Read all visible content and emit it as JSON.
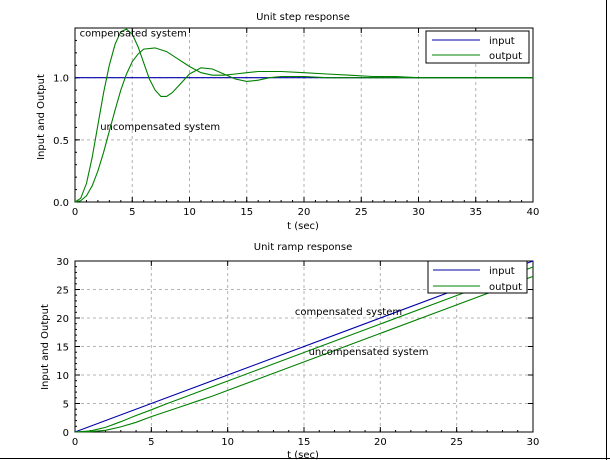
{
  "chart_data": [
    {
      "type": "line",
      "title": "Unit step response",
      "xlabel": "t (sec)",
      "ylabel": "Input and Output",
      "xlim": [
        0,
        40
      ],
      "ylim": [
        0,
        1.4
      ],
      "xticks": [
        0,
        5,
        10,
        15,
        20,
        25,
        30,
        35,
        40
      ],
      "xtick_labels": [
        "0",
        "5",
        "10",
        "15",
        "20",
        "25",
        "30",
        "35",
        "40"
      ],
      "yticks": [
        0,
        0.5,
        1.0
      ],
      "ytick_labels": [
        "0.0",
        "0.5",
        "1.0"
      ],
      "grid": true,
      "legend_position": "top-right",
      "legend": [
        {
          "label": "input",
          "color": "#0000aa"
        },
        {
          "label": "output",
          "color": "#008000"
        }
      ],
      "annotations": [
        {
          "text": "compensated system",
          "x": 0.4,
          "y": 1.33
        },
        {
          "text": "uncompensated system",
          "x": 2.2,
          "y": 0.58
        }
      ],
      "series": [
        {
          "color": "#0000aa",
          "x": [
            0,
            40
          ],
          "y": [
            1.0,
            1.0
          ]
        },
        {
          "color": "#008000",
          "x": [
            0,
            0.5,
            1,
            1.5,
            2,
            2.5,
            3,
            3.5,
            4,
            4.5,
            5,
            5.5,
            6,
            6.5,
            7,
            7.5,
            8,
            8.5,
            9,
            10,
            11,
            12,
            13,
            14,
            15,
            16,
            17,
            18,
            20,
            22,
            25,
            28,
            30,
            35,
            40
          ],
          "y": [
            0,
            0.03,
            0.15,
            0.36,
            0.62,
            0.88,
            1.1,
            1.27,
            1.37,
            1.39,
            1.35,
            1.25,
            1.12,
            0.99,
            0.9,
            0.85,
            0.85,
            0.88,
            0.93,
            1.03,
            1.08,
            1.07,
            1.03,
            0.99,
            0.97,
            0.98,
            1.0,
            1.01,
            1.01,
            1.0,
            1.0,
            1.0,
            1.0,
            1.0,
            1.0
          ]
        },
        {
          "color": "#008000",
          "x": [
            0,
            0.5,
            1,
            1.5,
            2,
            2.5,
            3,
            3.5,
            4,
            4.5,
            5,
            5.5,
            6,
            7,
            8,
            9,
            10,
            11,
            12,
            13,
            14,
            15,
            16,
            17,
            18,
            20,
            22,
            24,
            26,
            28,
            30,
            35,
            40
          ],
          "y": [
            0,
            0.01,
            0.05,
            0.13,
            0.25,
            0.4,
            0.57,
            0.74,
            0.9,
            1.03,
            1.13,
            1.19,
            1.23,
            1.24,
            1.21,
            1.15,
            1.09,
            1.04,
            1.02,
            1.02,
            1.03,
            1.04,
            1.05,
            1.05,
            1.05,
            1.04,
            1.03,
            1.02,
            1.01,
            1.01,
            1.0,
            1.0,
            1.0
          ]
        }
      ]
    },
    {
      "type": "line",
      "title": "Unit ramp response",
      "xlabel": "t (sec)",
      "ylabel": "Input and Output",
      "xlim": [
        0,
        30
      ],
      "ylim": [
        0,
        30
      ],
      "xticks": [
        0,
        5,
        10,
        15,
        20,
        25,
        30
      ],
      "xtick_labels": [
        "0",
        "5",
        "10",
        "15",
        "20",
        "25",
        "30"
      ],
      "yticks": [
        0,
        5,
        10,
        15,
        20,
        25,
        30
      ],
      "ytick_labels": [
        "0",
        "5",
        "10",
        "15",
        "20",
        "25",
        "30"
      ],
      "grid": true,
      "legend_position": "top-right",
      "legend": [
        {
          "label": "input",
          "color": "#0000aa"
        },
        {
          "label": "output",
          "color": "#008000"
        }
      ],
      "annotations": [
        {
          "text": "compensated system",
          "x": 14.4,
          "y": 20.5
        },
        {
          "text": "uncompensated system",
          "x": 15.3,
          "y": 13.5
        }
      ],
      "series": [
        {
          "color": "#0000aa",
          "x": [
            0,
            30
          ],
          "y": [
            0,
            30
          ]
        },
        {
          "color": "#008000",
          "x": [
            0,
            1,
            2,
            3,
            4,
            5,
            6,
            7,
            8,
            10,
            12,
            15,
            20,
            25,
            30
          ],
          "y": [
            0,
            0.2,
            0.8,
            1.8,
            2.9,
            3.9,
            4.95,
            5.95,
            6.95,
            8.95,
            10.95,
            13.95,
            18.95,
            23.95,
            28.95
          ]
        },
        {
          "color": "#008000",
          "x": [
            0,
            1,
            2,
            3,
            4,
            5,
            6,
            7,
            8,
            9,
            10,
            12,
            15,
            20,
            25,
            30
          ],
          "y": [
            0,
            0.05,
            0.3,
            0.9,
            1.7,
            2.7,
            3.6,
            4.5,
            5.4,
            6.3,
            7.3,
            9.3,
            12.3,
            17.3,
            22.3,
            27.3
          ]
        }
      ]
    }
  ]
}
